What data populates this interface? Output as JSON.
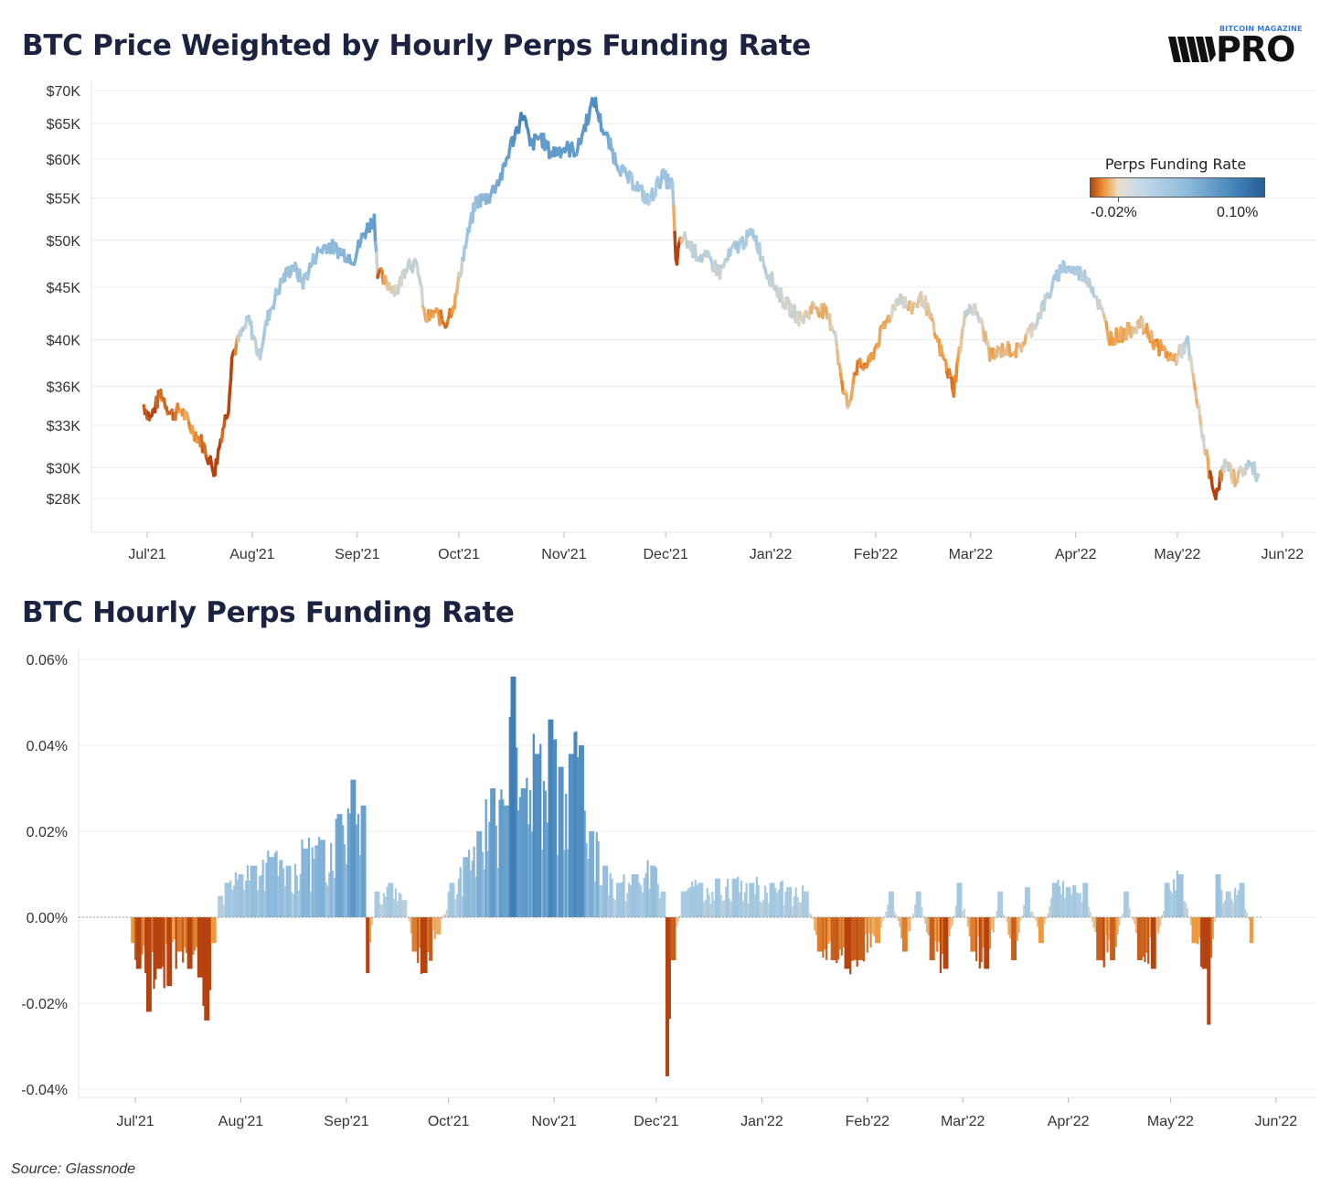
{
  "titles": {
    "top": "BTC Price Weighted by Hourly Perps Funding Rate",
    "bottom": "BTC Hourly Perps Funding Rate"
  },
  "logo": {
    "top_text": "BITCOIN MAGAZINE",
    "main_text": "PRO"
  },
  "source": "Source: Glassnode",
  "legend": {
    "title": "Perps Funding Rate",
    "min_label": "-0.02%",
    "max_label": "0.10%"
  },
  "colors": {
    "deep_orange": "#b5420f",
    "orange": "#f0993a",
    "neutral": "#dcd6c8",
    "light_blue": "#a9cbe3",
    "blue": "#6aa2cf",
    "deep_blue": "#3f7fb6"
  },
  "chart_data": [
    {
      "type": "line",
      "title": "BTC Price Weighted by Hourly Perps Funding Rate",
      "x_ticks": [
        "Jul'21",
        "Aug'21",
        "Sep'21",
        "Oct'21",
        "Nov'21",
        "Dec'21",
        "Jan'22",
        "Feb'22",
        "Mar'22",
        "Apr'22",
        "May'22",
        "Jun'22"
      ],
      "y_ticks": [
        "$70K",
        "$65K",
        "$60K",
        "$55K",
        "$50K",
        "$45K",
        "$40K",
        "$36K",
        "$33K",
        "$30K",
        "$28K"
      ],
      "y_scale": "log",
      "ylim": [
        26000,
        72000
      ],
      "color_by": "funding_rate",
      "series": [
        {
          "points": [
            [
              "2021-06-30",
              34500,
              -0.01
            ],
            [
              "2021-07-02",
              33500,
              -0.012
            ],
            [
              "2021-07-05",
              35500,
              -0.008
            ],
            [
              "2021-07-08",
              33800,
              -0.01
            ],
            [
              "2021-07-11",
              34200,
              -0.005
            ],
            [
              "2021-07-14",
              32800,
              -0.006
            ],
            [
              "2021-07-17",
              31800,
              -0.008
            ],
            [
              "2021-07-20",
              30200,
              -0.015
            ],
            [
              "2021-07-21",
              29800,
              -0.02
            ],
            [
              "2021-07-23",
              32400,
              -0.01
            ],
            [
              "2021-07-25",
              34500,
              -0.015
            ],
            [
              "2021-07-26",
              38500,
              -0.02
            ],
            [
              "2021-07-28",
              40000,
              0.002
            ],
            [
              "2021-07-31",
              41800,
              0.005
            ],
            [
              "2021-08-03",
              38500,
              0.004
            ],
            [
              "2021-08-06",
              42500,
              0.008
            ],
            [
              "2021-08-10",
              45800,
              0.01
            ],
            [
              "2021-08-13",
              47200,
              0.01
            ],
            [
              "2021-08-16",
              45500,
              0.008
            ],
            [
              "2021-08-20",
              48500,
              0.012
            ],
            [
              "2021-08-23",
              49500,
              0.015
            ],
            [
              "2021-08-27",
              48800,
              0.014
            ],
            [
              "2021-08-31",
              48000,
              0.02
            ],
            [
              "2021-09-03",
              50800,
              0.025
            ],
            [
              "2021-09-06",
              52500,
              0.03
            ],
            [
              "2021-09-07",
              46800,
              -0.012
            ],
            [
              "2021-09-09",
              45500,
              -0.004
            ],
            [
              "2021-09-13",
              44800,
              0.002
            ],
            [
              "2021-09-16",
              47800,
              0.004
            ],
            [
              "2021-09-19",
              46800,
              0.003
            ],
            [
              "2021-09-21",
              41800,
              -0.004
            ],
            [
              "2021-09-24",
              42500,
              -0.006
            ],
            [
              "2021-09-27",
              41500,
              -0.008
            ],
            [
              "2021-09-30",
              43800,
              -0.005
            ],
            [
              "2021-10-02",
              47800,
              0.006
            ],
            [
              "2021-10-06",
              54500,
              0.012
            ],
            [
              "2021-10-10",
              55200,
              0.018
            ],
            [
              "2021-10-14",
              58200,
              0.025
            ],
            [
              "2021-10-16",
              61500,
              0.03
            ],
            [
              "2021-10-20",
              66500,
              0.05
            ],
            [
              "2021-10-22",
              61800,
              0.035
            ],
            [
              "2021-10-25",
              63200,
              0.03
            ],
            [
              "2021-10-28",
              60800,
              0.03
            ],
            [
              "2021-11-01",
              61500,
              0.03
            ],
            [
              "2021-11-05",
              61200,
              0.028
            ],
            [
              "2021-11-08",
              66000,
              0.035
            ],
            [
              "2021-11-10",
              68500,
              0.04
            ],
            [
              "2021-11-12",
              64800,
              0.03
            ],
            [
              "2021-11-16",
              60200,
              0.015
            ],
            [
              "2021-11-19",
              57800,
              0.01
            ],
            [
              "2021-11-22",
              56800,
              0.008
            ],
            [
              "2021-11-26",
              54500,
              0.006
            ],
            [
              "2021-11-30",
              57800,
              0.01
            ],
            [
              "2021-12-03",
              56500,
              0.008
            ],
            [
              "2021-12-04",
              47500,
              -0.03
            ],
            [
              "2021-12-06",
              50500,
              0.003
            ],
            [
              "2021-12-10",
              48500,
              0.004
            ],
            [
              "2021-12-14",
              47800,
              0.004
            ],
            [
              "2021-12-17",
              46500,
              0.003
            ],
            [
              "2021-12-21",
              49000,
              0.006
            ],
            [
              "2021-12-27",
              50800,
              0.006
            ],
            [
              "2021-12-31",
              46500,
              0.004
            ],
            [
              "2022-01-05",
              43500,
              0.002
            ],
            [
              "2022-01-10",
              41800,
              0.001
            ],
            [
              "2022-01-14",
              43200,
              -0.003
            ],
            [
              "2022-01-17",
              42500,
              -0.003
            ],
            [
              "2022-01-20",
              40800,
              0.001
            ],
            [
              "2022-01-22",
              36000,
              -0.006
            ],
            [
              "2022-01-24",
              34500,
              -0.002
            ],
            [
              "2022-01-26",
              37500,
              -0.008
            ],
            [
              "2022-01-30",
              37900,
              -0.006
            ],
            [
              "2022-02-04",
              41500,
              -0.004
            ],
            [
              "2022-02-08",
              44200,
              0.002
            ],
            [
              "2022-02-11",
              42800,
              -0.002
            ],
            [
              "2022-02-15",
              44000,
              0.001
            ],
            [
              "2022-02-19",
              40000,
              -0.005
            ],
            [
              "2022-02-24",
              35800,
              -0.008
            ],
            [
              "2022-02-28",
              43200,
              0.003
            ],
            [
              "2022-03-03",
              42500,
              0.002
            ],
            [
              "2022-03-07",
              38500,
              -0.004
            ],
            [
              "2022-03-11",
              39200,
              -0.004
            ],
            [
              "2022-03-15",
              39000,
              -0.005
            ],
            [
              "2022-03-20",
              41500,
              0.002
            ],
            [
              "2022-03-24",
              44200,
              0.004
            ],
            [
              "2022-03-28",
              47200,
              0.008
            ],
            [
              "2022-04-02",
              46500,
              0.005
            ],
            [
              "2022-04-05",
              45800,
              0.004
            ],
            [
              "2022-04-08",
              43200,
              0.002
            ],
            [
              "2022-04-11",
              40200,
              -0.006
            ],
            [
              "2022-04-15",
              40500,
              -0.004
            ],
            [
              "2022-04-20",
              41500,
              -0.002
            ],
            [
              "2022-04-25",
              39500,
              -0.006
            ],
            [
              "2022-04-30",
              38200,
              -0.004
            ],
            [
              "2022-05-04",
              39700,
              0.006
            ],
            [
              "2022-05-06",
              36000,
              -0.004
            ],
            [
              "2022-05-09",
              31500,
              0.002
            ],
            [
              "2022-05-11",
              29000,
              -0.015
            ],
            [
              "2022-05-12",
              28200,
              -0.025
            ],
            [
              "2022-05-15",
              30200,
              0.004
            ],
            [
              "2022-05-18",
              29300,
              -0.004
            ],
            [
              "2022-05-22",
              30200,
              0.005
            ],
            [
              "2022-05-25",
              29500,
              0.004
            ]
          ]
        }
      ]
    },
    {
      "type": "bar",
      "title": "BTC Hourly Perps Funding Rate",
      "x_ticks": [
        "Jul'21",
        "Aug'21",
        "Sep'21",
        "Oct'21",
        "Nov'21",
        "Dec'21",
        "Jan'22",
        "Feb'22",
        "Mar'22",
        "Apr'22",
        "May'22",
        "Jun'22"
      ],
      "y_ticks": [
        "0.06%",
        "0.04%",
        "0.02%",
        "0.00%",
        "-0.02%",
        "-0.04%"
      ],
      "ylim": [
        -0.042,
        0.06
      ],
      "anchors": [
        [
          "2021-06-30",
          -0.006
        ],
        [
          "2021-07-02",
          -0.012
        ],
        [
          "2021-07-05",
          -0.022
        ],
        [
          "2021-07-08",
          -0.012
        ],
        [
          "2021-07-11",
          -0.016
        ],
        [
          "2021-07-14",
          -0.008
        ],
        [
          "2021-07-17",
          -0.012
        ],
        [
          "2021-07-20",
          -0.014
        ],
        [
          "2021-07-22",
          -0.024
        ],
        [
          "2021-07-24",
          -0.006
        ],
        [
          "2021-07-26",
          0.005
        ],
        [
          "2021-07-28",
          0.008
        ],
        [
          "2021-08-01",
          0.01
        ],
        [
          "2021-08-05",
          0.012
        ],
        [
          "2021-08-10",
          0.014
        ],
        [
          "2021-08-15",
          0.012
        ],
        [
          "2021-08-20",
          0.016
        ],
        [
          "2021-08-25",
          0.018
        ],
        [
          "2021-08-30",
          0.024
        ],
        [
          "2021-09-03",
          0.032
        ],
        [
          "2021-09-06",
          0.026
        ],
        [
          "2021-09-07",
          -0.013
        ],
        [
          "2021-09-10",
          0.006
        ],
        [
          "2021-09-14",
          0.008
        ],
        [
          "2021-09-18",
          0.004
        ],
        [
          "2021-09-21",
          -0.008
        ],
        [
          "2021-09-24",
          -0.013
        ],
        [
          "2021-09-28",
          -0.004
        ],
        [
          "2021-10-02",
          0.008
        ],
        [
          "2021-10-06",
          0.014
        ],
        [
          "2021-10-10",
          0.02
        ],
        [
          "2021-10-14",
          0.03
        ],
        [
          "2021-10-18",
          0.026
        ],
        [
          "2021-10-20",
          0.056
        ],
        [
          "2021-10-23",
          0.03
        ],
        [
          "2021-10-27",
          0.038
        ],
        [
          "2021-10-31",
          0.046
        ],
        [
          "2021-11-03",
          0.035
        ],
        [
          "2021-11-06",
          0.038
        ],
        [
          "2021-11-09",
          0.04
        ],
        [
          "2021-11-12",
          0.02
        ],
        [
          "2021-11-16",
          0.012
        ],
        [
          "2021-11-20",
          0.008
        ],
        [
          "2021-11-25",
          0.01
        ],
        [
          "2021-11-30",
          0.012
        ],
        [
          "2021-12-03",
          0.006
        ],
        [
          "2021-12-04",
          -0.037
        ],
        [
          "2021-12-06",
          -0.01
        ],
        [
          "2021-12-09",
          0.006
        ],
        [
          "2021-12-14",
          0.008
        ],
        [
          "2021-12-19",
          0.009
        ],
        [
          "2021-12-24",
          0.009
        ],
        [
          "2021-12-29",
          0.008
        ],
        [
          "2022-01-04",
          0.008
        ],
        [
          "2022-01-09",
          0.007
        ],
        [
          "2022-01-14",
          0.006
        ],
        [
          "2022-01-18",
          -0.008
        ],
        [
          "2022-01-22",
          -0.01
        ],
        [
          "2022-01-26",
          -0.012
        ],
        [
          "2022-01-30",
          -0.01
        ],
        [
          "2022-02-04",
          -0.006
        ],
        [
          "2022-02-08",
          0.006
        ],
        [
          "2022-02-12",
          -0.008
        ],
        [
          "2022-02-16",
          0.006
        ],
        [
          "2022-02-20",
          -0.01
        ],
        [
          "2022-02-24",
          -0.012
        ],
        [
          "2022-02-28",
          0.008
        ],
        [
          "2022-03-04",
          -0.008
        ],
        [
          "2022-03-08",
          -0.012
        ],
        [
          "2022-03-12",
          0.006
        ],
        [
          "2022-03-16",
          -0.01
        ],
        [
          "2022-03-20",
          0.007
        ],
        [
          "2022-03-24",
          -0.006
        ],
        [
          "2022-03-28",
          0.008
        ],
        [
          "2022-04-01",
          0.007
        ],
        [
          "2022-04-06",
          0.008
        ],
        [
          "2022-04-10",
          -0.01
        ],
        [
          "2022-04-14",
          -0.01
        ],
        [
          "2022-04-18",
          0.006
        ],
        [
          "2022-04-22",
          -0.01
        ],
        [
          "2022-04-26",
          -0.012
        ],
        [
          "2022-04-30",
          0.008
        ],
        [
          "2022-05-04",
          0.01
        ],
        [
          "2022-05-08",
          -0.006
        ],
        [
          "2022-05-11",
          -0.012
        ],
        [
          "2022-05-12",
          -0.025
        ],
        [
          "2022-05-15",
          0.01
        ],
        [
          "2022-05-18",
          0.006
        ],
        [
          "2022-05-22",
          0.008
        ],
        [
          "2022-05-25",
          -0.006
        ]
      ]
    }
  ]
}
